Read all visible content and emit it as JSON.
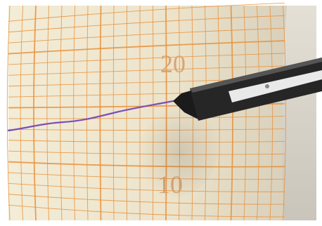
{
  "scale_labels": {
    "upper": "20",
    "lower": "10"
  }
}
